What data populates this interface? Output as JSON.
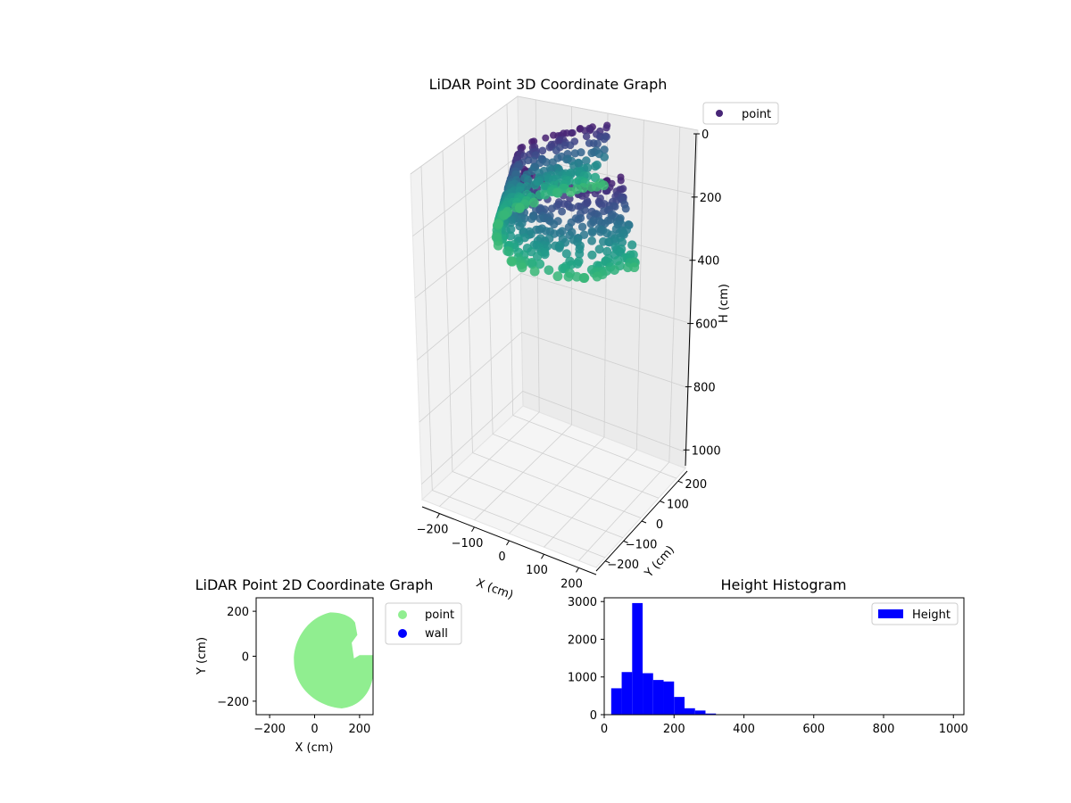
{
  "chart_data": [
    {
      "type": "scatter3d",
      "title": "LiDAR Point 3D Coordinate Graph",
      "xlabel": "X (cm)",
      "ylabel": "Y (cm)",
      "zlabel": "H (cm)",
      "xlim": [
        -250,
        250
      ],
      "ylim": [
        -250,
        250
      ],
      "zlim": [
        1050,
        0
      ],
      "x_ticks": [
        -200,
        -100,
        0,
        100,
        200
      ],
      "y_ticks": [
        -200,
        -100,
        0,
        100,
        200
      ],
      "z_ticks": [
        0,
        200,
        400,
        600,
        800,
        1000
      ],
      "colormap": "viridis",
      "legend": [
        {
          "label": "point",
          "color": "#482677"
        }
      ],
      "legend_position": "upper-right",
      "series": [
        {
          "name": "point",
          "description_values": "curved band of points with heights mostly 0-320 cm"
        }
      ]
    },
    {
      "type": "scatter",
      "title": "LiDAR Point 2D Coordinate Graph",
      "xlabel": "X (cm)",
      "ylabel": "Y (cm)",
      "xlim": [
        -260,
        260
      ],
      "ylim": [
        -260,
        260
      ],
      "x_ticks": [
        -200,
        0,
        200
      ],
      "y_ticks": [
        -200,
        0,
        200
      ],
      "legend": [
        {
          "label": "point",
          "color": "#90ee90"
        },
        {
          "label": "wall",
          "color": "#0000ff"
        }
      ],
      "legend_position": "outside-right",
      "series": [
        {
          "name": "point",
          "color": "#90ee90"
        },
        {
          "name": "wall",
          "color": "#0000ff"
        }
      ]
    },
    {
      "type": "bar",
      "title": "Height Histogram",
      "xlabel": "",
      "ylabel": "",
      "xlim": [
        0,
        1030
      ],
      "ylim": [
        0,
        3100
      ],
      "x_ticks": [
        0,
        200,
        400,
        600,
        800,
        1000
      ],
      "y_ticks": [
        0,
        1000,
        2000,
        3000
      ],
      "bin_width": 30,
      "bin_starts": [
        20,
        50,
        80,
        110,
        140,
        170,
        200,
        230,
        260,
        290
      ],
      "values": [
        700,
        1130,
        2960,
        1100,
        920,
        880,
        470,
        170,
        110,
        30
      ],
      "color": "#0000ff",
      "legend": [
        {
          "label": "Height",
          "color": "#0000ff"
        }
      ],
      "legend_position": "upper-right"
    }
  ]
}
